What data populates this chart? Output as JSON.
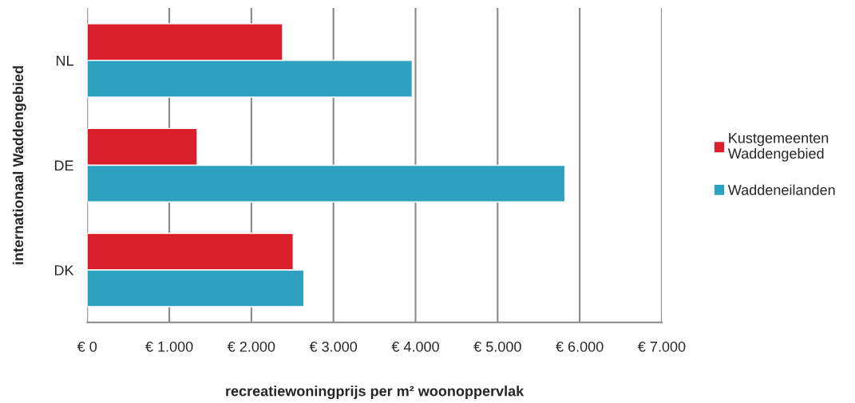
{
  "chart_data": {
    "type": "bar",
    "orientation": "horizontal",
    "categories": [
      "NL",
      "DE",
      "DK"
    ],
    "series": [
      {
        "name": "Kustgemeenten Waddengebied",
        "color": "#d9202a",
        "values": [
          2380,
          1340,
          2510
        ]
      },
      {
        "name": "Waddeneilanden",
        "color": "#2da1bf",
        "values": [
          3960,
          5820,
          2640
        ]
      }
    ],
    "xlabel": "recreatiewoningprijs per m² woonoppervlak",
    "ylabel": "internationaal Waddengebied",
    "xlim": [
      0,
      7000
    ],
    "xticks": [
      {
        "value": 0,
        "label": "€ 0"
      },
      {
        "value": 1000,
        "label": "€ 1.000"
      },
      {
        "value": 2000,
        "label": "€ 2.000"
      },
      {
        "value": 3000,
        "label": "€ 3.000"
      },
      {
        "value": 4000,
        "label": "€ 4.000"
      },
      {
        "value": 5000,
        "label": "€ 5.000"
      },
      {
        "value": 6000,
        "label": "€ 6.000"
      },
      {
        "value": 7000,
        "label": "€ 7.000"
      }
    ],
    "grid": "x",
    "legend": "right"
  }
}
